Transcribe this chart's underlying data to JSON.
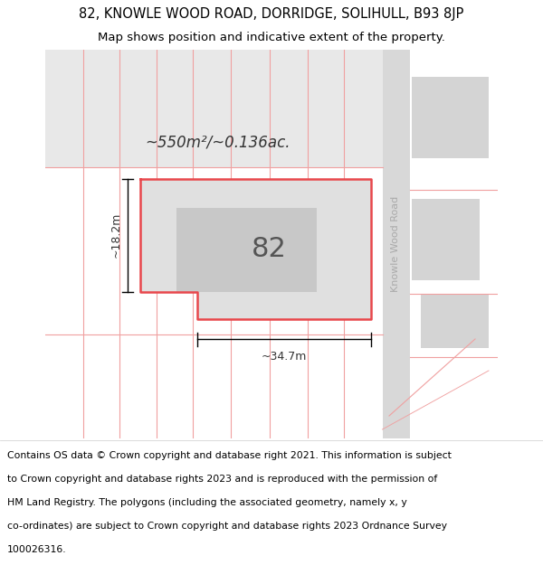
{
  "title_line1": "82, KNOWLE WOOD ROAD, DORRIDGE, SOLIHULL, B93 8JP",
  "title_line2": "Map shows position and indicative extent of the property.",
  "footer_lines": [
    "Contains OS data © Crown copyright and database right 2021. This information is subject",
    "to Crown copyright and database rights 2023 and is reproduced with the permission of",
    "HM Land Registry. The polygons (including the associated geometry, namely x, y",
    "co-ordinates) are subject to Crown copyright and database rights 2023 Ordnance Survey",
    "100026316."
  ],
  "bg_map_color": "#f2f2f2",
  "red_line_color": "#e8474c",
  "light_red_line_color": "#f0a0a0",
  "area_label": "~550m²/~0.136ac.",
  "number_label": "82",
  "width_label": "~34.7m",
  "height_label": "~18.2m",
  "road_label": "Knowle Wood Road"
}
